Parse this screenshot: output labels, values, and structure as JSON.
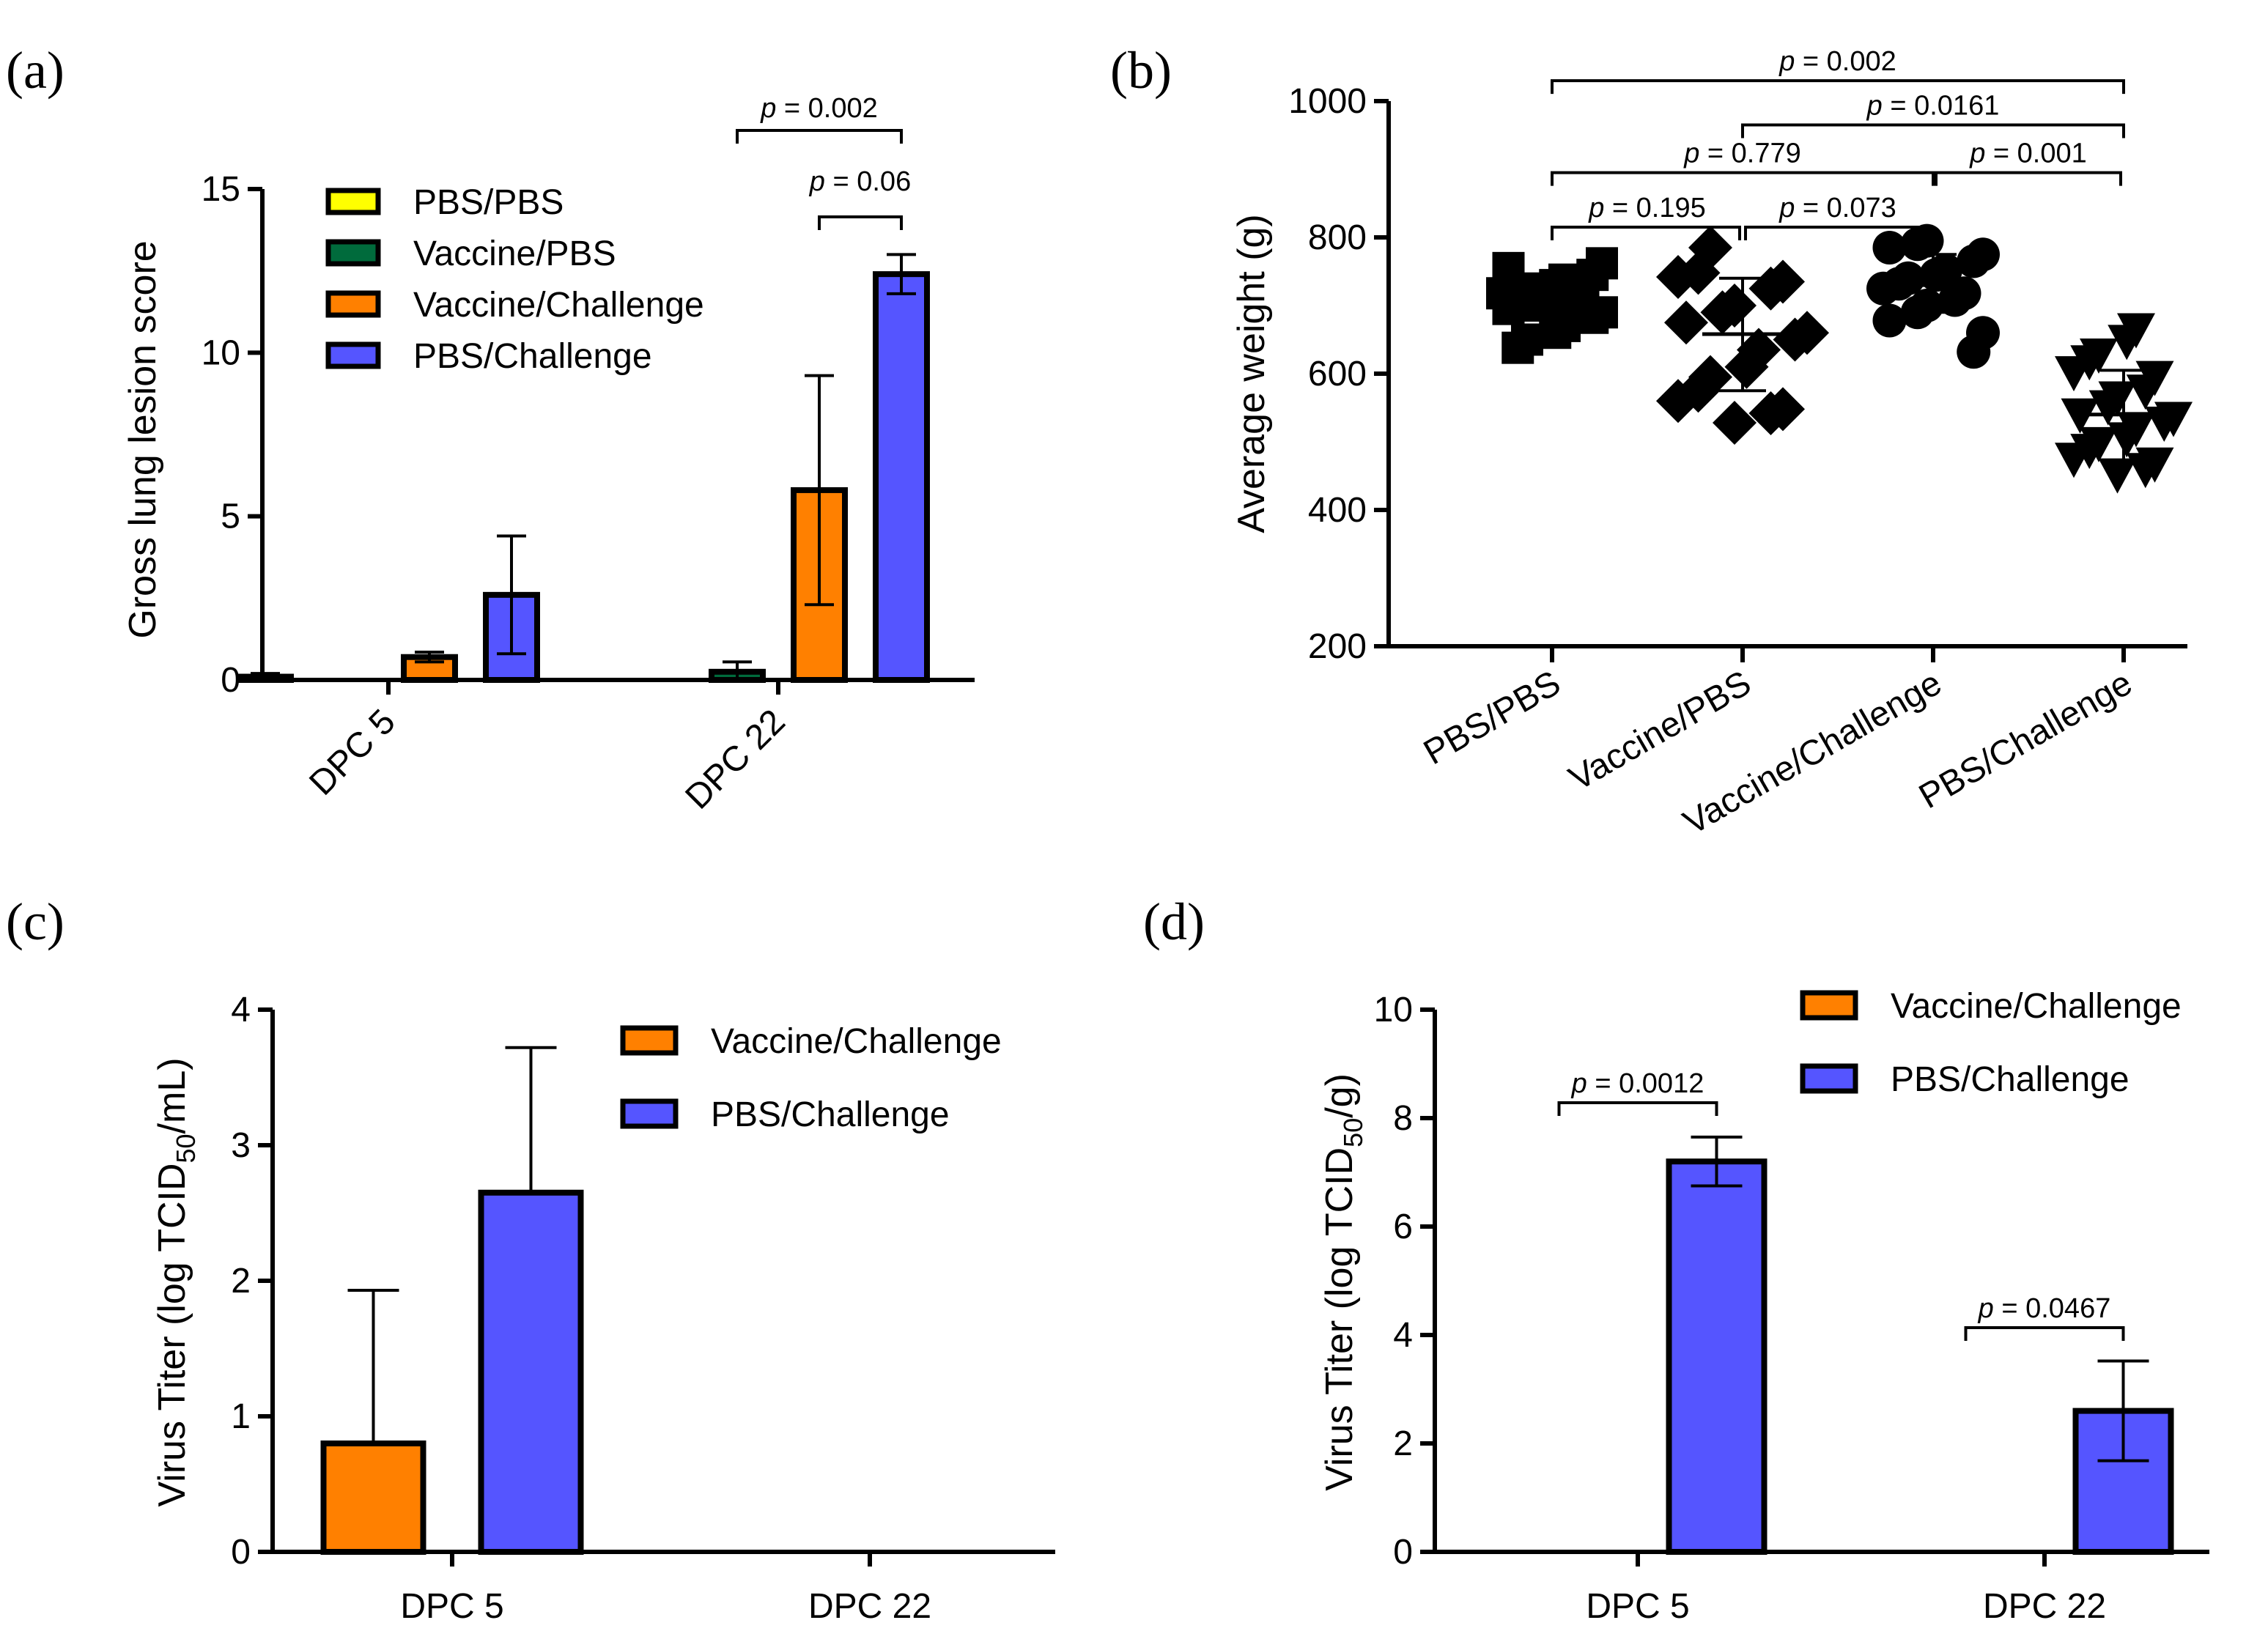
{
  "colors": {
    "PBS/PBS": "#FFFF00",
    "Vaccine/PBS": "#006B3C",
    "Vaccine/Challenge": "#FF8000",
    "PBS/Challenge": "#5555FF"
  },
  "chart_data": [
    {
      "panel": "(a)",
      "type": "bar",
      "categories": [
        "DPC 5",
        "DPC 22"
      ],
      "ylabel": "Gross lung lesion score",
      "xlabel": "",
      "ylim": [
        0,
        15
      ],
      "yticks": [
        "0",
        "5",
        "10",
        "15"
      ],
      "series": [
        {
          "name": "PBS/PBS",
          "values": [
            0.1,
            0.0
          ],
          "errors": [
            0.1,
            0.0
          ]
        },
        {
          "name": "Vaccine/PBS",
          "values": [
            0.0,
            0.25
          ],
          "errors": [
            0.0,
            0.3
          ]
        },
        {
          "name": "Vaccine/Challenge",
          "values": [
            0.7,
            5.8
          ],
          "errors": [
            0.15,
            3.5
          ]
        },
        {
          "name": "PBS/Challenge",
          "values": [
            2.6,
            12.4
          ],
          "errors": [
            1.8,
            0.6
          ]
        }
      ],
      "legend": [
        "PBS/PBS",
        "Vaccine/PBS",
        "Vaccine/Challenge",
        "PBS/Challenge"
      ],
      "annotations": [
        {
          "p": "p",
          "text": " = 0.002",
          "category": 1,
          "from": 1,
          "to": 3
        },
        {
          "p": "p",
          "text": " = 0.06",
          "category": 1,
          "from": 2,
          "to": 3
        }
      ]
    },
    {
      "panel": "(b)",
      "type": "scatter",
      "categories": [
        "PBS/PBS",
        "Vaccine/PBS",
        "Vaccine/Challenge",
        "PBS/Challenge"
      ],
      "ylabel": "Average weight (g)",
      "xlabel": "",
      "ylim": [
        200,
        1000
      ],
      "yticks": [
        "200",
        "400",
        "600",
        "800",
        "1000"
      ],
      "groups": [
        {
          "name": "PBS/PBS",
          "marker": "square",
          "mean": 700,
          "sd_low": 670,
          "sd_high": 735,
          "points": [
            755,
            762,
            745,
            738,
            730,
            725,
            720,
            718,
            712,
            708,
            705,
            700,
            695,
            690,
            682,
            670,
            660,
            650,
            638
          ]
        },
        {
          "name": "Vaccine/PBS",
          "marker": "diamond",
          "mean": 658,
          "sd_low": 575,
          "sd_high": 740,
          "points": [
            785,
            748,
            742,
            735,
            725,
            700,
            690,
            675,
            660,
            650,
            635,
            610,
            595,
            575,
            560,
            548,
            542,
            528
          ]
        },
        {
          "name": "Vaccine/Challenge",
          "marker": "circle",
          "mean": 730,
          "sd_low": 690,
          "sd_high": 775,
          "points": [
            795,
            790,
            785,
            775,
            765,
            752,
            745,
            740,
            732,
            725,
            718,
            708,
            700,
            690,
            678,
            660,
            632
          ]
        },
        {
          "name": "PBS/Challenge",
          "marker": "triangle-down",
          "mean": 540,
          "sd_low": 472,
          "sd_high": 605,
          "points": [
            665,
            648,
            628,
            618,
            602,
            595,
            575,
            565,
            552,
            540,
            535,
            528,
            520,
            505,
            498,
            488,
            475,
            468,
            460,
            452
          ]
        }
      ],
      "annotations": [
        {
          "p": "p",
          "text": " = 0.002",
          "from": 0,
          "to": 3,
          "level": 1030
        },
        {
          "p": "p",
          "text": " = 0.0161",
          "from": 1,
          "to": 3,
          "level": 965
        },
        {
          "p": "p",
          "text": " = 0.779",
          "from": 0,
          "to": 2,
          "level": 895
        },
        {
          "p": "p",
          "text": " = 0.001",
          "from": 2,
          "to": 3,
          "level": 895
        },
        {
          "p": "p",
          "text": " = 0.195",
          "from": 0,
          "to": 1,
          "level": 815
        },
        {
          "p": "p",
          "text": " = 0.073",
          "from": 1,
          "to": 2,
          "level": 815
        }
      ]
    },
    {
      "panel": "(c)",
      "type": "bar",
      "categories": [
        "DPC 5",
        "DPC 22"
      ],
      "ylabel_main": "Virus Titer (log TCID",
      "ylabel_sub": "50",
      "ylabel_end": "/mL)",
      "xlabel": "",
      "ylim": [
        0,
        4
      ],
      "yticks": [
        "0",
        "1",
        "2",
        "3",
        "4"
      ],
      "series": [
        {
          "name": "Vaccine/Challenge",
          "values": [
            0.8,
            0.0
          ],
          "errors": [
            1.13,
            0.0
          ]
        },
        {
          "name": "PBS/Challenge",
          "values": [
            2.65,
            0.0
          ],
          "errors": [
            1.07,
            0.0
          ]
        }
      ],
      "legend": [
        "Vaccine/Challenge",
        "PBS/Challenge"
      ],
      "annotations": []
    },
    {
      "panel": "(d)",
      "type": "bar",
      "categories": [
        "DPC 5",
        "DPC 22"
      ],
      "ylabel_main": "Virus Titer (log TCID",
      "ylabel_sub": "50",
      "ylabel_end": "/g)",
      "xlabel": "",
      "ylim": [
        0,
        10
      ],
      "yticks": [
        "0",
        "2",
        "4",
        "6",
        "8",
        "10"
      ],
      "series": [
        {
          "name": "Vaccine/Challenge",
          "values": [
            0.0,
            0.0
          ],
          "errors": [
            0.0,
            0.0
          ]
        },
        {
          "name": "PBS/Challenge",
          "values": [
            7.2,
            2.6
          ],
          "errors": [
            0.45,
            0.92
          ]
        }
      ],
      "legend": [
        "Vaccine/Challenge",
        "PBS/Challenge"
      ],
      "annotations": [
        {
          "p": "p",
          "text": " = 0.0012",
          "category": 0,
          "from": 0,
          "to": 1
        },
        {
          "p": "p",
          "text": " = 0.0467",
          "category": 1,
          "from": 0,
          "to": 1
        }
      ]
    }
  ]
}
